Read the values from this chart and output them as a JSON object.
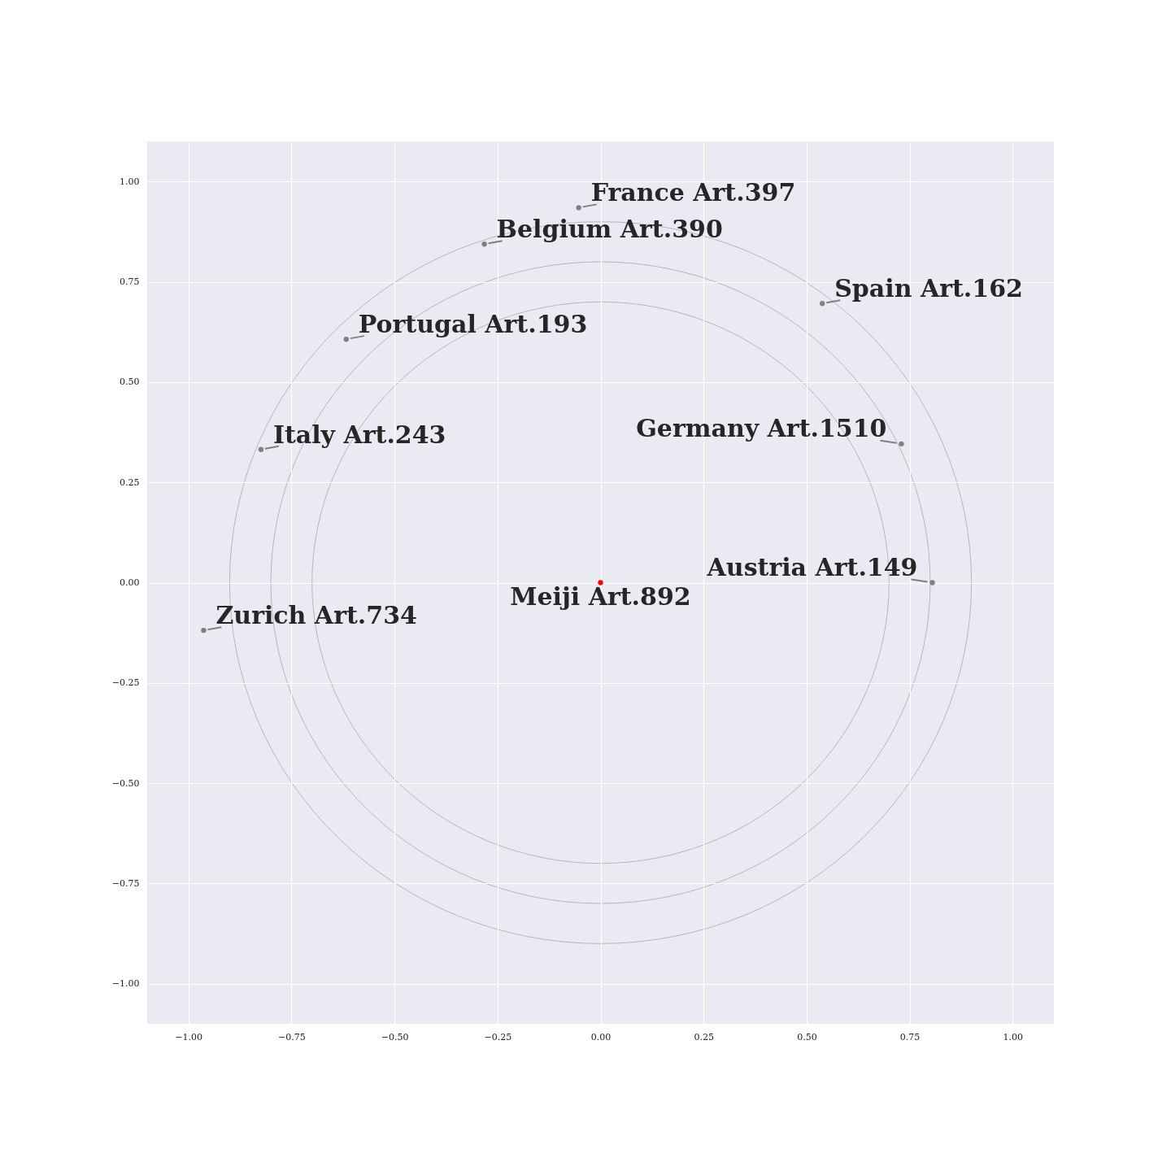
{
  "chart_data": {
    "type": "scatter",
    "xlim": [
      -1.1,
      1.1
    ],
    "ylim": [
      -1.1,
      1.1
    ],
    "xticks": [
      {
        "value": -1,
        "label": "−1.00"
      },
      {
        "value": -0.75,
        "label": "−0.75"
      },
      {
        "value": -0.5,
        "label": "−0.50"
      },
      {
        "value": -0.25,
        "label": "−0.25"
      },
      {
        "value": 0,
        "label": "0.00"
      },
      {
        "value": 0.25,
        "label": "0.25"
      },
      {
        "value": 0.5,
        "label": "0.50"
      },
      {
        "value": 0.75,
        "label": "0.75"
      },
      {
        "value": 1,
        "label": "1.00"
      }
    ],
    "yticks": [
      {
        "value": -1,
        "label": "−1.00"
      },
      {
        "value": -0.75,
        "label": "−0.75"
      },
      {
        "value": -0.5,
        "label": "−0.50"
      },
      {
        "value": -0.25,
        "label": "−0.25"
      },
      {
        "value": 0,
        "label": "0.00"
      },
      {
        "value": 0.25,
        "label": "0.25"
      },
      {
        "value": 0.5,
        "label": "0.50"
      },
      {
        "value": 0.75,
        "label": "0.75"
      },
      {
        "value": 1,
        "label": "1.00"
      }
    ],
    "grid": true,
    "marker": "circle",
    "series": [
      {
        "type": "scatter",
        "color": "#808080",
        "x": [
          -0.053,
          -0.282,
          0.538,
          -0.617,
          -0.824,
          0.73,
          0.805,
          -0.963
        ],
        "values": [
          0.935,
          0.844,
          0.696,
          0.607,
          0.332,
          0.346,
          0,
          -0.119
        ]
      },
      {
        "type": "scatter",
        "color": "#ff0000",
        "x": [
          0
        ],
        "values": [
          0
        ]
      }
    ],
    "annotations": [
      {
        "text": "France Art.397",
        "x": -0.053,
        "y": 0.935
      },
      {
        "text": "Belgium Art.390",
        "x": -0.282,
        "y": 0.844
      },
      {
        "text": "Spain Art.162",
        "x": 0.538,
        "y": 0.696
      },
      {
        "text": "Portugal Art.193",
        "x": -0.617,
        "y": 0.607
      },
      {
        "text": "Italy Art.243",
        "x": -0.824,
        "y": 0.332
      },
      {
        "text": "Germany Art.1510",
        "x": 0.73,
        "y": 0.346
      },
      {
        "text": "Austria Art.149",
        "x": 0.805,
        "y": 0
      },
      {
        "text": "Zurich Art.734",
        "x": -0.963,
        "y": -0.119
      },
      {
        "text": "Meiji Art.892",
        "x": 0,
        "y": 0
      }
    ]
  }
}
